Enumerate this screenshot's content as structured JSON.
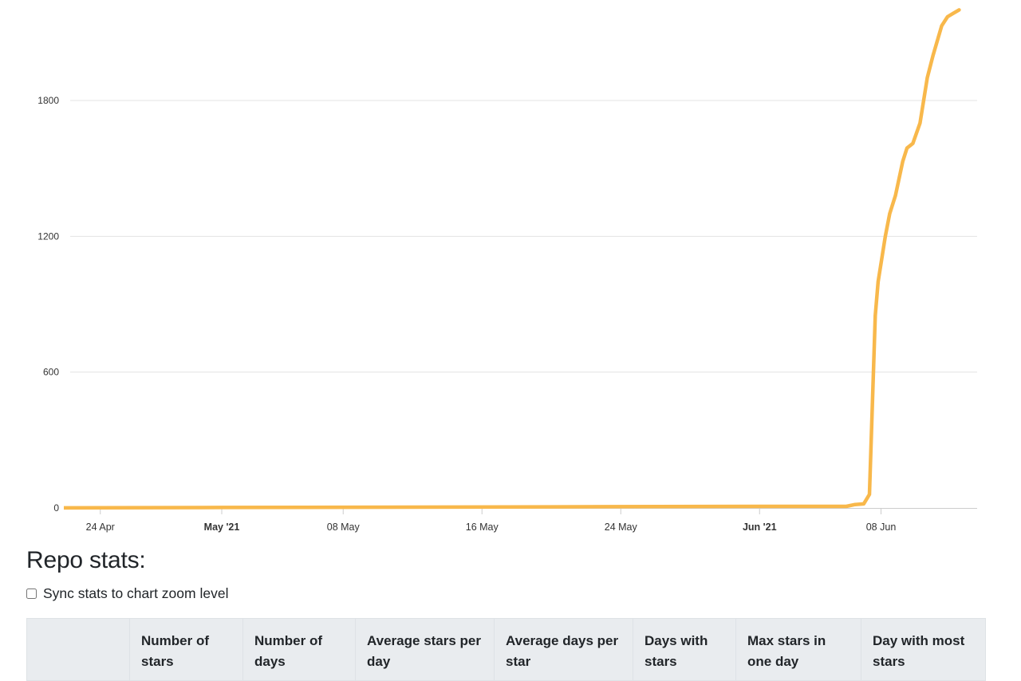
{
  "chart_data": {
    "type": "line",
    "title": "",
    "xlabel": "",
    "ylabel": "",
    "ylim": [
      0,
      2200
    ],
    "xlim": [
      "2021-04-21",
      "2021-06-16"
    ],
    "grid": true,
    "y_ticks": [
      {
        "value": 0,
        "label": "0"
      },
      {
        "value": 600,
        "label": "600"
      },
      {
        "value": 1200,
        "label": "1200"
      },
      {
        "value": 1800,
        "label": "1800"
      }
    ],
    "x_ticks": [
      {
        "date": "2021-04-24",
        "label": "24 Apr",
        "bold": false
      },
      {
        "date": "2021-05-01",
        "label": "May '21",
        "bold": true
      },
      {
        "date": "2021-05-08",
        "label": "08 May",
        "bold": false
      },
      {
        "date": "2021-05-16",
        "label": "16 May",
        "bold": false
      },
      {
        "date": "2021-05-24",
        "label": "24 May",
        "bold": false
      },
      {
        "date": "2021-06-01",
        "label": "Jun '21",
        "bold": true
      },
      {
        "date": "2021-06-08",
        "label": "08 Jun",
        "bold": false
      }
    ],
    "series": [
      {
        "color": "#f8b84b",
        "points": [
          [
            "2021-04-20T09:00",
            0
          ],
          [
            "2021-05-01T00:00",
            2
          ],
          [
            "2021-05-20T00:00",
            5
          ],
          [
            "2021-06-01T00:00",
            7
          ],
          [
            "2021-06-06T00:00",
            7
          ],
          [
            "2021-06-06T12:00",
            15
          ],
          [
            "2021-06-07T00:00",
            18
          ],
          [
            "2021-06-07T08:00",
            60
          ],
          [
            "2021-06-07T12:00",
            450
          ],
          [
            "2021-06-07T16:00",
            850
          ],
          [
            "2021-06-07T20:00",
            1000
          ],
          [
            "2021-06-08T06:00",
            1200
          ],
          [
            "2021-06-08T12:00",
            1300
          ],
          [
            "2021-06-08T20:00",
            1380
          ],
          [
            "2021-06-09T06:00",
            1530
          ],
          [
            "2021-06-09T12:00",
            1590
          ],
          [
            "2021-06-09T20:00",
            1610
          ],
          [
            "2021-06-10T06:00",
            1700
          ],
          [
            "2021-06-10T16:00",
            1900
          ],
          [
            "2021-06-11T00:00",
            2000
          ],
          [
            "2021-06-11T12:00",
            2130
          ],
          [
            "2021-06-11T20:00",
            2170
          ],
          [
            "2021-06-12T04:00",
            2185
          ],
          [
            "2021-06-12T12:00",
            2200
          ]
        ]
      }
    ]
  },
  "stats": {
    "heading": "Repo stats:",
    "sync_label": "Sync stats to chart zoom level",
    "columns": [
      "",
      "Number of stars",
      "Number of days",
      "Average stars per day",
      "Average days per star",
      "Days with stars",
      "Max stars in one day",
      "Day with most stars"
    ]
  }
}
